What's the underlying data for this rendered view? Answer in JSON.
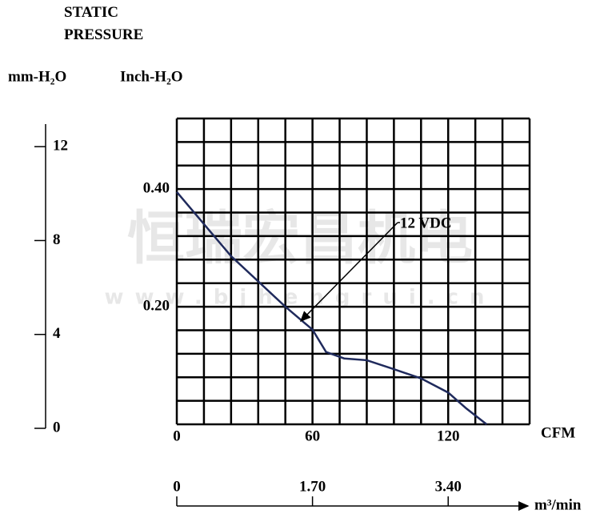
{
  "chart_data": {
    "type": "line",
    "title": "STATIC PRESSURE",
    "y_label": "Inch-H₂O",
    "y2_label": "mm-H₂O",
    "x_label": "CFM",
    "x2_label": "m³/min",
    "watermark": "恒瑞宏昌机电",
    "watermark_url": "www.bjhengrui.cn",
    "annotation": "12 VDC",
    "xlim": [
      0,
      156
    ],
    "xticks": [
      0,
      60,
      120
    ],
    "xgrid": [
      0,
      12,
      24,
      36,
      48,
      60,
      72,
      84,
      96,
      108,
      120,
      132,
      144,
      156
    ],
    "ylim": [
      0,
      0.52
    ],
    "yticks": [
      {
        "value": 0.2,
        "label": "0.20"
      },
      {
        "value": 0.4,
        "label": "0.40"
      }
    ],
    "ygrid": [
      0,
      0.04,
      0.08,
      0.12,
      0.16,
      0.2,
      0.24,
      0.28,
      0.32,
      0.36,
      0.4,
      0.44,
      0.48,
      0.52
    ],
    "y2lim": [
      0,
      13.2
    ],
    "y2ticks": [
      0,
      4,
      8,
      12
    ],
    "x2lim": [
      0,
      4.42
    ],
    "x2ticks": [
      0,
      {
        "value": 1.7,
        "label": "1.70"
      },
      {
        "value": 3.4,
        "label": "3.40"
      }
    ],
    "grid": true,
    "series": [
      {
        "name": "12 VDC",
        "color": "#1f2a5c",
        "x": [
          0,
          24,
          48,
          60,
          66,
          74,
          84,
          95,
          108,
          120,
          128,
          137
        ],
        "values": [
          0.395,
          0.286,
          0.2,
          0.161,
          0.123,
          0.112,
          0.109,
          0.095,
          0.078,
          0.054,
          0.027,
          0
        ]
      }
    ]
  }
}
